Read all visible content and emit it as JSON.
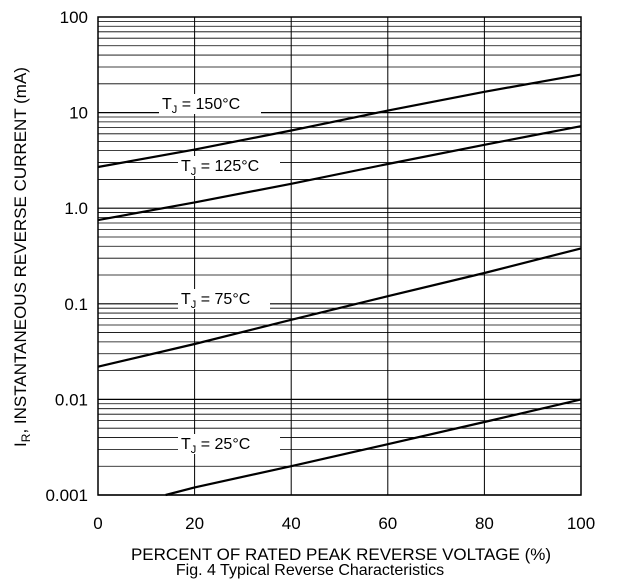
{
  "caption": "Fig. 4 Typical Reverse Characteristics",
  "chart_data": {
    "type": "line",
    "title": "Fig. 4 Typical Reverse Characteristics",
    "xlabel": "PERCENT OF RATED PEAK REVERSE VOLTAGE (%)",
    "ylabel_main": "I",
    "ylabel_sub": "R",
    "ylabel_rest": ", INSTANTANEOUS REVERSE CURRENT (mA)",
    "xlim": [
      0,
      100
    ],
    "ylim": [
      0.001,
      100
    ],
    "yscale": "log",
    "grid": true,
    "x_ticks": [
      "0",
      "20",
      "40",
      "60",
      "80",
      "100"
    ],
    "y_ticks": [
      "0.001",
      "0.01",
      "0.1",
      "1.0",
      "10",
      "100"
    ],
    "line_color": "#000000",
    "series": [
      {
        "label_pre": "T",
        "label_sub": "J",
        "label_post": " = 150°C",
        "x": [
          0,
          20,
          40,
          60,
          80,
          100
        ],
        "y": [
          2.7,
          4.1,
          6.5,
          10.5,
          16.5,
          25
        ]
      },
      {
        "label_pre": "T",
        "label_sub": "J",
        "label_post": " = 125°C",
        "x": [
          0,
          20,
          40,
          60,
          80,
          100
        ],
        "y": [
          0.75,
          1.15,
          1.8,
          2.9,
          4.6,
          7.2
        ]
      },
      {
        "label_pre": "T",
        "label_sub": "J",
        "label_post": " = 75°C",
        "x": [
          0,
          20,
          40,
          60,
          80,
          100
        ],
        "y": [
          0.022,
          0.038,
          0.068,
          0.12,
          0.21,
          0.38
        ]
      },
      {
        "label_pre": "T",
        "label_sub": "J",
        "label_post": " = 25°C",
        "x": [
          14,
          20,
          40,
          60,
          80,
          100
        ],
        "y": [
          0.001,
          0.0012,
          0.002,
          0.0034,
          0.0058,
          0.01
        ]
      }
    ]
  }
}
